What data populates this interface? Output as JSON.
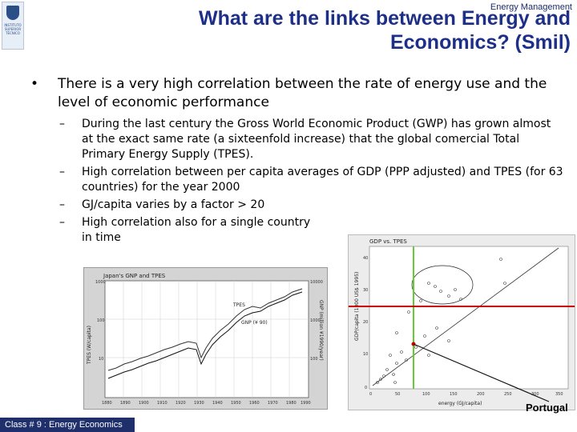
{
  "header": {
    "course_label": "Energy Management",
    "title": "What are the links between Energy and Economics? (Smil)",
    "logo_text": "INSTITUTO SUPERIOR TÉCNICO"
  },
  "main": {
    "bullet_mark": "•",
    "bullet": "There is a very high correlation between the rate of energy use and the level of economic performance",
    "sub_dash": "–",
    "sub_items": [
      "During the last century the Gross World Economic Product (GWP) has grown almost at the exact same rate (a sixteenfold increase) that the global comercial Total Primary Energy Supply (TPES).",
      "High correlation between per capita averages of GDP (PPP adjusted) and TPES (for 63 countries) for the year 2000",
      "GJ/capita varies by a factor > 20",
      "High correlation also for a  single country in time"
    ]
  },
  "figure_japan": {
    "title": "Japan's GNP and TPES",
    "series_tpes": "TPES",
    "series_gnp": "GNP (¥ 90)",
    "y_left_label": "TPES (W/capita)",
    "y_right_label": "GNP (million ¥1990/year)",
    "x_ticks": [
      "1880",
      "1890",
      "1900",
      "1910",
      "1920",
      "1930",
      "1940",
      "1950",
      "1960",
      "1970",
      "1980",
      "1990"
    ],
    "y_left_ticks": [
      "1000",
      "100",
      "10"
    ],
    "y_right_ticks": [
      "10000",
      "1000",
      "100"
    ]
  },
  "figure_gdp": {
    "title": "GDP vs. TPES",
    "x_label": "energy (GJ/capita)",
    "y_label": "GDP/capita (1000 US$ 1995)",
    "x_ticks": [
      "0",
      "50",
      "100",
      "150",
      "200",
      "250",
      "300",
      "350"
    ],
    "y_ticks": [
      "40",
      "30",
      "20",
      "10",
      "0"
    ],
    "callout": "Portugal",
    "colors": {
      "highlight_line": "#cc0000",
      "vertical_line": "#66cc33"
    }
  },
  "footer": {
    "text": "Class # 9 : Energy Economics"
  }
}
